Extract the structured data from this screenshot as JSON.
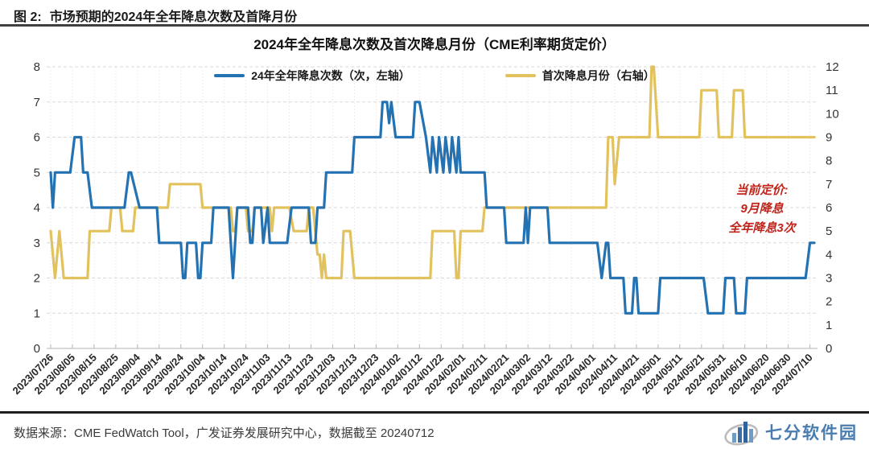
{
  "header": {
    "figure_label": "图  2:",
    "title": "市场预期的2024年全年降息次数及首降月份"
  },
  "chart_data": {
    "type": "line",
    "title": "2024年全年降息次数及首次降息月份（CME利率期货定价）",
    "x_start_date": "2023/07/26",
    "x_end_date": "2024/07/12",
    "x_range_days": 352,
    "x_tick_interval_days": 10,
    "x_tick_labels": [
      "2023/07/26",
      "2023/08/05",
      "2023/08/15",
      "2023/08/25",
      "2023/09/04",
      "2023/09/14",
      "2023/09/24",
      "2023/10/04",
      "2023/10/14",
      "2023/10/24",
      "2023/11/03",
      "2023/11/13",
      "2023/11/23",
      "2023/12/03",
      "2023/12/13",
      "2023/12/23",
      "2024/01/02",
      "2024/01/12",
      "2024/01/22",
      "2024/02/01",
      "2024/02/11",
      "2024/02/21",
      "2024/03/02",
      "2024/03/12",
      "2024/03/22",
      "2024/04/01",
      "2024/04/11",
      "2024/04/21",
      "2024/05/01",
      "2024/05/11",
      "2024/05/21",
      "2024/05/31",
      "2024/06/10",
      "2024/06/20",
      "2024/06/30",
      "2024/07/10"
    ],
    "left_axis": {
      "min": 0,
      "max": 8,
      "ticks": [
        0,
        1,
        2,
        3,
        4,
        5,
        6,
        7,
        8
      ]
    },
    "right_axis": {
      "min": 0,
      "max": 12,
      "ticks": [
        0,
        1,
        2,
        3,
        4,
        5,
        6,
        7,
        8,
        9,
        10,
        11,
        12
      ]
    },
    "grid": true,
    "legend_position": "top",
    "series": [
      {
        "name": "首次降息月份（右轴）",
        "axis": "right",
        "color": "#e2c25e",
        "points": [
          [
            0,
            5
          ],
          [
            2,
            3
          ],
          [
            4,
            5
          ],
          [
            6,
            3
          ],
          [
            17,
            3
          ],
          [
            18,
            5
          ],
          [
            27,
            5
          ],
          [
            28,
            6
          ],
          [
            32,
            6
          ],
          [
            33,
            5
          ],
          [
            38,
            5
          ],
          [
            39,
            6
          ],
          [
            54,
            6
          ],
          [
            55,
            7
          ],
          [
            69,
            7
          ],
          [
            70,
            6
          ],
          [
            83,
            6
          ],
          [
            84,
            5
          ],
          [
            85,
            5
          ],
          [
            86,
            6
          ],
          [
            90,
            6
          ],
          [
            91,
            5
          ],
          [
            93,
            5
          ],
          [
            94,
            6
          ],
          [
            101,
            6
          ],
          [
            102,
            5
          ],
          [
            103,
            6
          ],
          [
            110,
            6
          ],
          [
            112,
            5
          ],
          [
            118,
            5
          ],
          [
            119,
            6
          ],
          [
            121,
            6
          ],
          [
            123,
            4
          ],
          [
            124,
            4
          ],
          [
            125,
            3
          ],
          [
            126,
            4
          ],
          [
            127,
            3
          ],
          [
            134,
            3
          ],
          [
            135,
            5
          ],
          [
            138,
            5
          ],
          [
            140,
            3
          ],
          [
            175,
            3
          ],
          [
            176,
            5
          ],
          [
            186,
            5
          ],
          [
            187,
            3
          ],
          [
            188,
            3
          ],
          [
            189,
            5
          ],
          [
            199,
            5
          ],
          [
            200,
            6
          ],
          [
            256,
            6
          ],
          [
            257,
            9
          ],
          [
            259,
            9
          ],
          [
            260,
            7
          ],
          [
            262,
            9
          ],
          [
            276,
            9
          ],
          [
            277,
            12
          ],
          [
            278,
            12
          ],
          [
            280,
            9
          ],
          [
            299,
            9
          ],
          [
            300,
            11
          ],
          [
            307,
            11
          ],
          [
            308,
            9
          ],
          [
            314,
            9
          ],
          [
            315,
            11
          ],
          [
            319,
            11
          ],
          [
            320,
            9
          ],
          [
            352,
            9
          ]
        ]
      },
      {
        "name": "24年全年降息次数（次，左轴）",
        "axis": "left",
        "color": "#2472b2",
        "points": [
          [
            0,
            5
          ],
          [
            1,
            4
          ],
          [
            2,
            5
          ],
          [
            9,
            5
          ],
          [
            11,
            6
          ],
          [
            14,
            6
          ],
          [
            15,
            5
          ],
          [
            17,
            5
          ],
          [
            19,
            4
          ],
          [
            34,
            4
          ],
          [
            36,
            5
          ],
          [
            37,
            5
          ],
          [
            41,
            4
          ],
          [
            49,
            4
          ],
          [
            50,
            3
          ],
          [
            60,
            3
          ],
          [
            61,
            2
          ],
          [
            62,
            2
          ],
          [
            63,
            3
          ],
          [
            67,
            3
          ],
          [
            68,
            2
          ],
          [
            69,
            2
          ],
          [
            70,
            3
          ],
          [
            74,
            3
          ],
          [
            75,
            4
          ],
          [
            82,
            4
          ],
          [
            84,
            2
          ],
          [
            86,
            4
          ],
          [
            91,
            4
          ],
          [
            92,
            3
          ],
          [
            93,
            3
          ],
          [
            94,
            4
          ],
          [
            97,
            4
          ],
          [
            98,
            3
          ],
          [
            100,
            4
          ],
          [
            101,
            3
          ],
          [
            103,
            3
          ],
          [
            109,
            3
          ],
          [
            111,
            4
          ],
          [
            119,
            4
          ],
          [
            120,
            3
          ],
          [
            122,
            3
          ],
          [
            123,
            4
          ],
          [
            126,
            4
          ],
          [
            127,
            5
          ],
          [
            139,
            5
          ],
          [
            140,
            6
          ],
          [
            152,
            6
          ],
          [
            153,
            7
          ],
          [
            155,
            7
          ],
          [
            156,
            6.4
          ],
          [
            157,
            7
          ],
          [
            159,
            6
          ],
          [
            167,
            6
          ],
          [
            168,
            7
          ],
          [
            170,
            7
          ],
          [
            173,
            6
          ],
          [
            175,
            5
          ],
          [
            176,
            6
          ],
          [
            178,
            5
          ],
          [
            179,
            6
          ],
          [
            181,
            5
          ],
          [
            182,
            6
          ],
          [
            184,
            5
          ],
          [
            185,
            6
          ],
          [
            187,
            5
          ],
          [
            188,
            6
          ],
          [
            189,
            5
          ],
          [
            200,
            5
          ],
          [
            201,
            4
          ],
          [
            209,
            4
          ],
          [
            210,
            3
          ],
          [
            218,
            3
          ],
          [
            219,
            4
          ],
          [
            220,
            3
          ],
          [
            221,
            4
          ],
          [
            229,
            4
          ],
          [
            230,
            3
          ],
          [
            252,
            3
          ],
          [
            254,
            2
          ],
          [
            256,
            3
          ],
          [
            257,
            3
          ],
          [
            258,
            2
          ],
          [
            264,
            2
          ],
          [
            265,
            1
          ],
          [
            268,
            1
          ],
          [
            269,
            2
          ],
          [
            270,
            2
          ],
          [
            271,
            1
          ],
          [
            280,
            1
          ],
          [
            281,
            2
          ],
          [
            301,
            2
          ],
          [
            303,
            1
          ],
          [
            310,
            1
          ],
          [
            311,
            2
          ],
          [
            315,
            2
          ],
          [
            316,
            1
          ],
          [
            320,
            1
          ],
          [
            321,
            2
          ],
          [
            348,
            2
          ],
          [
            350,
            3
          ],
          [
            352,
            3
          ]
        ]
      }
    ],
    "annotation": {
      "color": "#c0251c",
      "lines": [
        "当前定价:",
        "9月降息",
        "全年降息3次"
      ]
    }
  },
  "footer": {
    "source": "数据来源：CME FedWatch Tool，广发证券发展研究中心，数据截至 20240712",
    "logo_text": "七分软件园"
  }
}
